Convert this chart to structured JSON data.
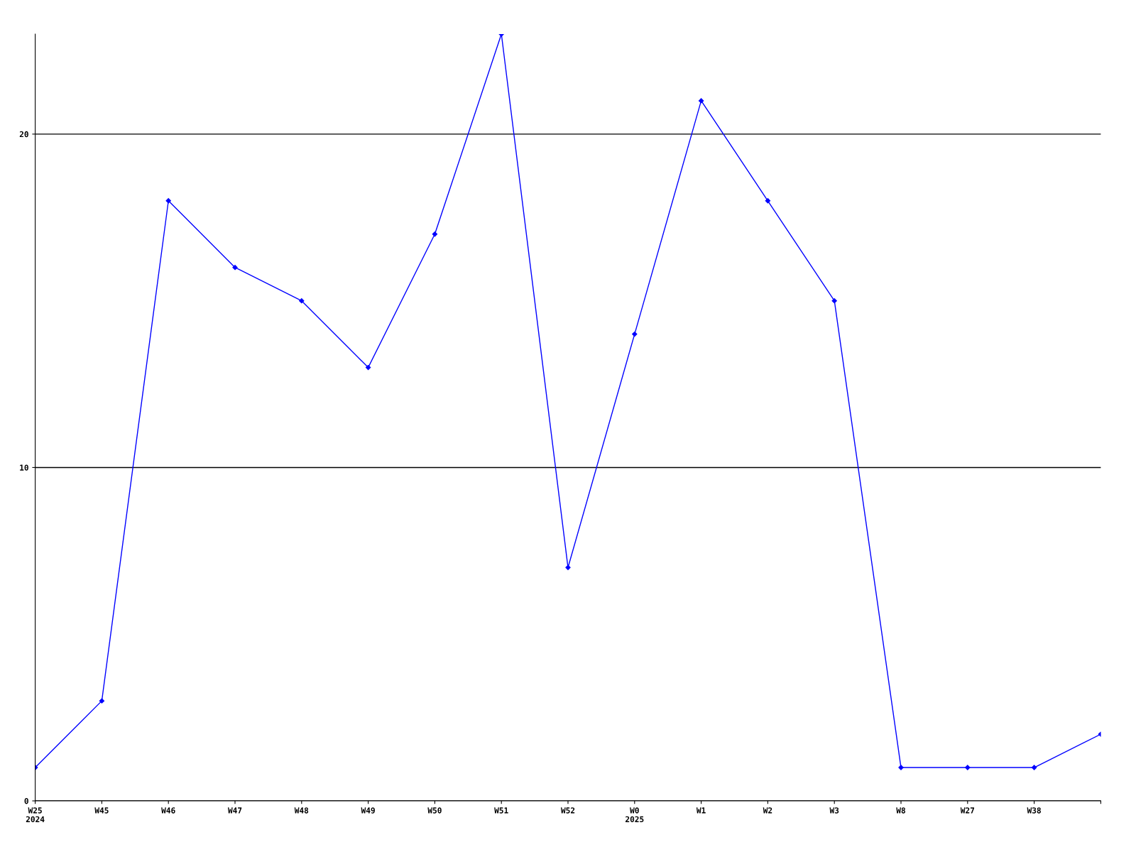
{
  "chart_data": {
    "type": "line",
    "categories": [
      "W25\n2024",
      "W45",
      "W46",
      "W47",
      "W48",
      "W49",
      "W50",
      "W51",
      "W52",
      "W0\n2025",
      "W1",
      "W2",
      "W3",
      "W8",
      "W27",
      "W38",
      null
    ],
    "series": [
      {
        "color": "#0000ff",
        "values": [
          1,
          3,
          18,
          16,
          15,
          13,
          17,
          23,
          7,
          14,
          21,
          18,
          15,
          1,
          1,
          1,
          2
        ]
      }
    ],
    "ylim": [
      0,
      23
    ],
    "yticks": [
      0,
      10,
      20
    ],
    "grid": "y",
    "marker": "diamond",
    "line_style": "solid",
    "legend": false
  }
}
